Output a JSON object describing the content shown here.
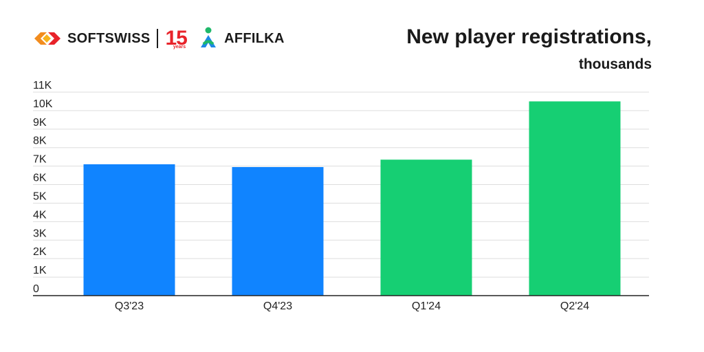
{
  "brand": {
    "softswiss": "SOFTSWISS",
    "anniversary_number": "15",
    "anniversary_word": "years",
    "affilka": "AFFILKA"
  },
  "colors": {
    "blue": "#1084ff",
    "green": "#16cf73",
    "grid": "#dddddd",
    "axis": "#222222",
    "text": "#222222"
  },
  "chart_data": {
    "type": "bar",
    "title": "New player registrations,",
    "subtitle": "thousands",
    "categories": [
      "Q3'23",
      "Q4'23",
      "Q1'24",
      "Q2'24"
    ],
    "values": [
      7100,
      6950,
      7350,
      10500
    ],
    "bar_colors": [
      "#1084ff",
      "#1084ff",
      "#16cf73",
      "#16cf73"
    ],
    "ylim": [
      0,
      11000
    ],
    "yticks": [
      {
        "value": 0,
        "label": "0"
      },
      {
        "value": 1000,
        "label": "1K"
      },
      {
        "value": 2000,
        "label": "2K"
      },
      {
        "value": 3000,
        "label": "3K"
      },
      {
        "value": 4000,
        "label": "4K"
      },
      {
        "value": 5000,
        "label": "5K"
      },
      {
        "value": 6000,
        "label": "6K"
      },
      {
        "value": 7000,
        "label": "7K"
      },
      {
        "value": 8000,
        "label": "8K"
      },
      {
        "value": 9000,
        "label": "9K"
      },
      {
        "value": 10000,
        "label": "10K"
      },
      {
        "value": 11000,
        "label": "11K"
      }
    ],
    "grid": true,
    "legend": "none"
  }
}
